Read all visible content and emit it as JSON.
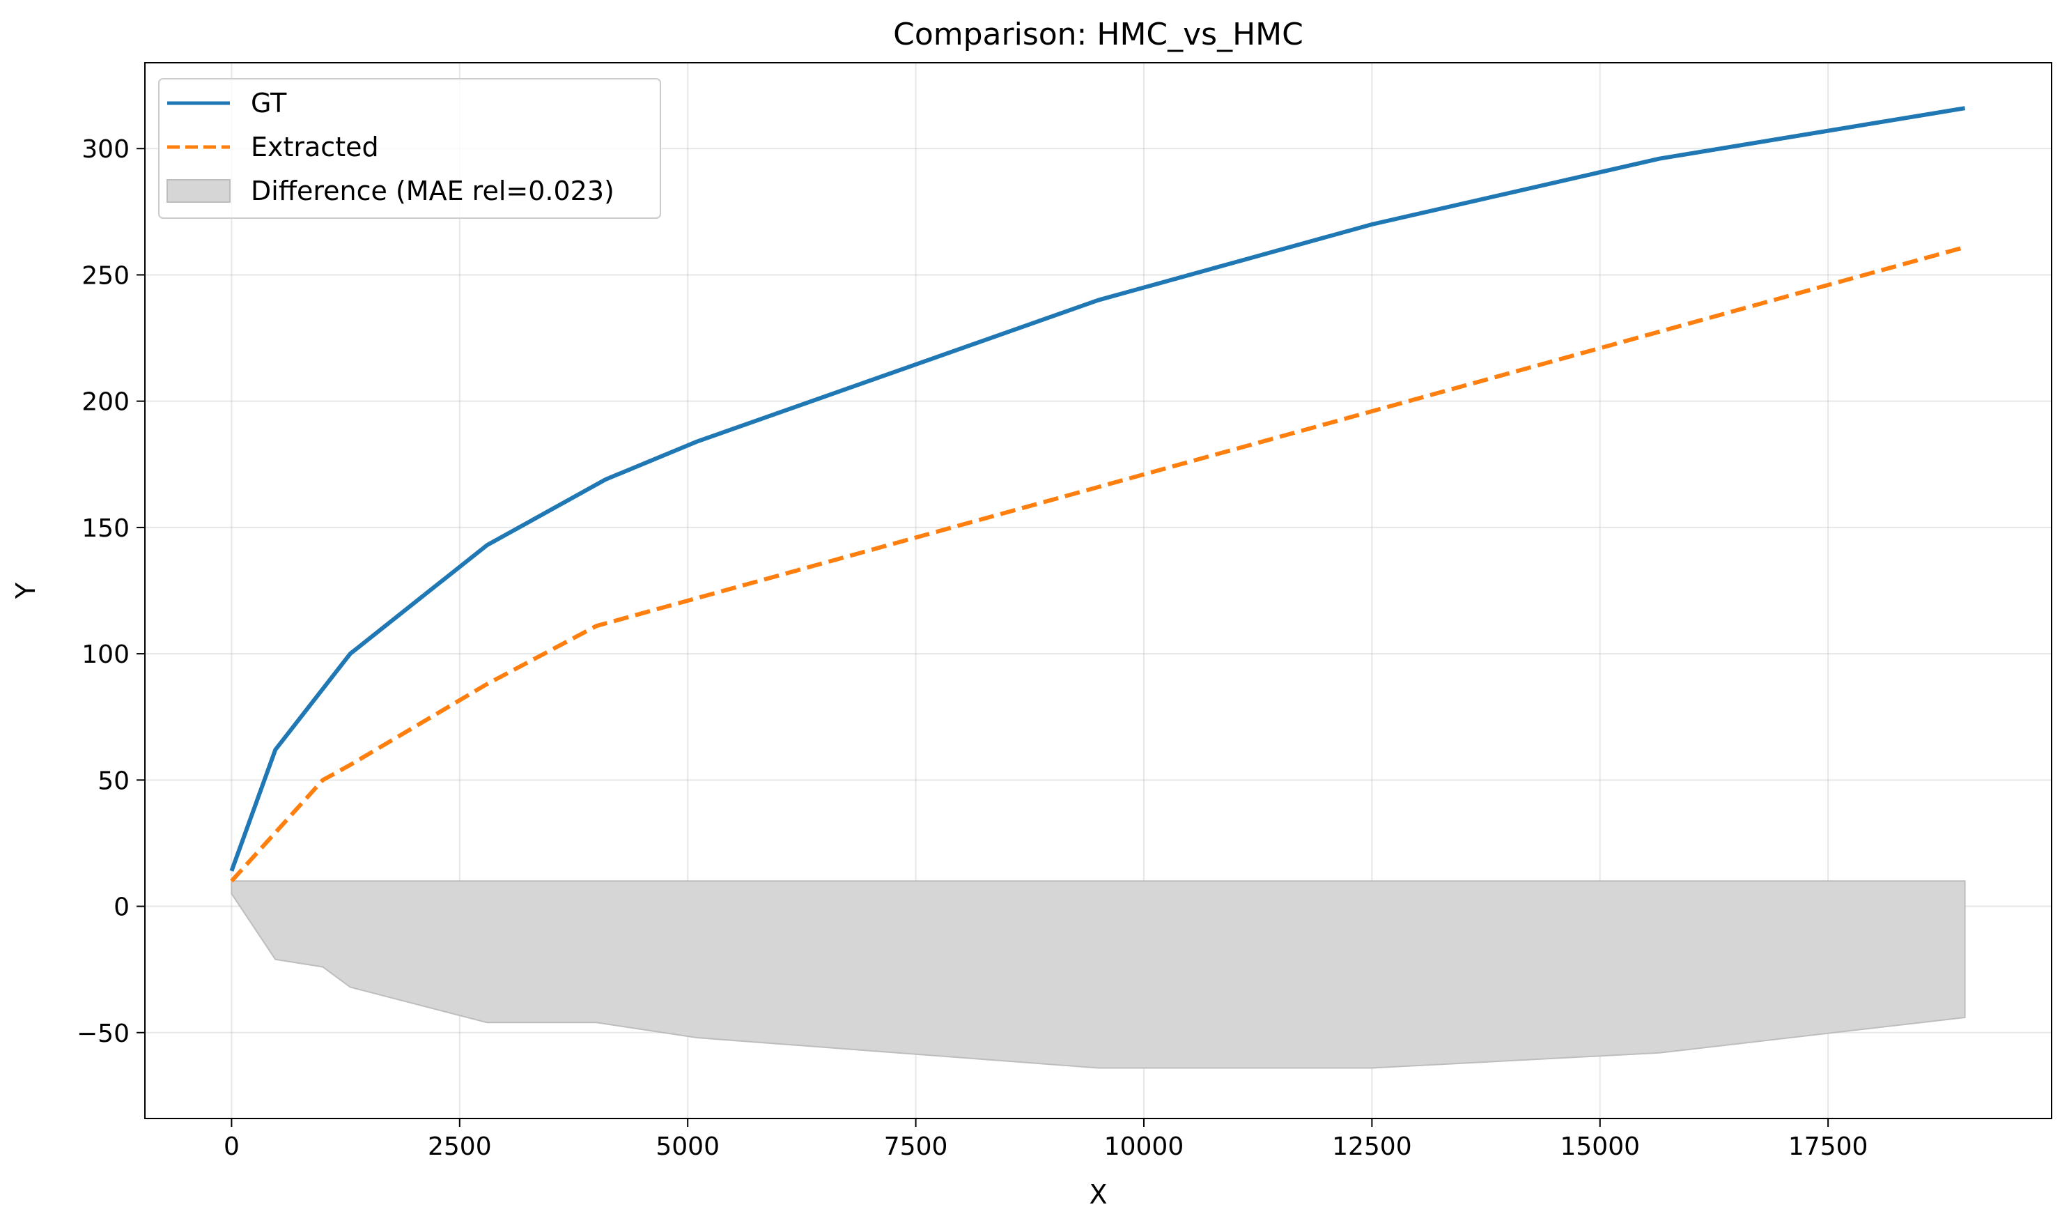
{
  "chart_data": {
    "type": "line",
    "title": "Comparison: HMC_vs_HMC",
    "xlabel": "X",
    "ylabel": "Y",
    "xlim": [
      -950,
      19950
    ],
    "ylim": [
      -84,
      334
    ],
    "xticks": [
      0,
      2500,
      5000,
      7500,
      10000,
      12500,
      15000,
      17500
    ],
    "yticks": [
      -50,
      0,
      50,
      100,
      150,
      200,
      250,
      300
    ],
    "grid": true,
    "legend_position": "top-left",
    "series": [
      {
        "name": "GT",
        "color": "#1f77b4",
        "style": "solid",
        "x": [
          0,
          480,
          1300,
          2800,
          4100,
          5100,
          9500,
          11300,
          12500,
          15650,
          19000
        ],
        "y": [
          14,
          62,
          100,
          143,
          169,
          184,
          240,
          258,
          270,
          296,
          316
        ]
      },
      {
        "name": "Extracted",
        "color": "#ff7f0e",
        "style": "dashed",
        "x": [
          0,
          1000,
          1300,
          2800,
          4000,
          19000
        ],
        "y": [
          10,
          50,
          56,
          88,
          111,
          261
        ]
      }
    ],
    "difference_band": {
      "name": "Difference (MAE rel=0.023)",
      "color": "#d6d6d6",
      "edge_color": "#bdbdbd",
      "upper_x": [
        0,
        19000
      ],
      "upper_y": [
        10,
        10
      ],
      "lower_x": [
        0,
        480,
        1000,
        1300,
        2800,
        4000,
        5100,
        9500,
        11300,
        12500,
        15650,
        19000
      ],
      "lower_y": [
        5,
        -21,
        -24,
        -32,
        -46,
        -46,
        -52,
        -64,
        -64,
        -64,
        -58,
        -44
      ]
    }
  }
}
